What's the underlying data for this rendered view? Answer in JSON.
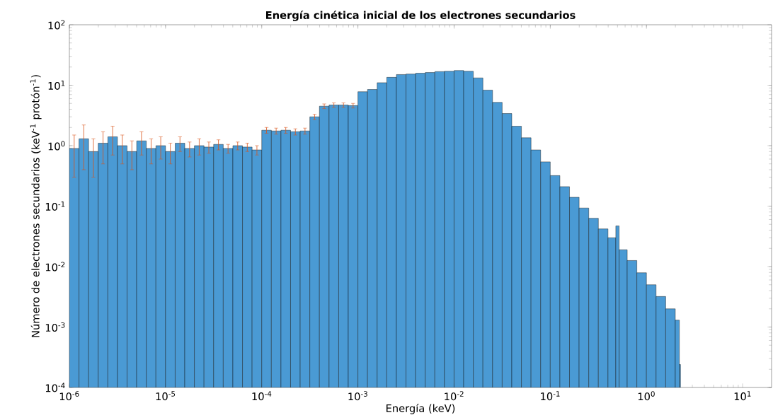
{
  "chart_data": {
    "type": "histogram",
    "title": "**Energía cinética inicial de los electrones secundarios**",
    "xlabel": "Energía (keV)",
    "ylabel": "Número de electrones secundarios (keV$^{-1}$ protón$^{-1}$)",
    "color": "#4a9ad4",
    "log": "xy",
    "grid": false,
    "bins": [
      1e-06,
      1.259e-06,
      1.585e-06,
      1.995e-06,
      2.512e-06,
      3.162e-06,
      3.981e-06,
      5.012e-06,
      6.31e-06,
      7.943e-06,
      1e-05,
      1.259e-05,
      1.585e-05,
      1.995e-05,
      2.512e-05,
      3.162e-05,
      3.981e-05,
      5.012e-05,
      6.31e-05,
      7.943e-05,
      0.0001,
      0.0001259,
      0.0001585,
      0.0001995,
      0.0002512,
      0.0003162,
      0.0003981,
      0.0005012,
      0.000631,
      0.0007943,
      0.001,
      0.001259,
      0.001585,
      0.001995,
      0.002512,
      0.003162,
      0.003981,
      0.005012,
      0.00631,
      0.007943,
      0.01,
      0.01259,
      0.01585,
      0.01995,
      0.02512,
      0.03162,
      0.03981,
      0.05012,
      0.0631,
      0.07943,
      0.1,
      0.1259,
      0.1585,
      0.1995,
      0.2512,
      0.3162,
      0.3981,
      0.48,
      0.52,
      0.631,
      0.7943,
      1,
      1.259,
      1.585,
      1.995,
      2.2,
      2.26
    ],
    "values": [
      0.9,
      1.3,
      0.8,
      1.1,
      1.4,
      1.0,
      0.8,
      1.2,
      0.9,
      1.0,
      0.8,
      1.1,
      0.9,
      1.0,
      0.95,
      1.05,
      0.9,
      1.0,
      0.95,
      0.85,
      1.8,
      1.75,
      1.8,
      1.7,
      1.75,
      3.0,
      4.5,
      4.7,
      4.7,
      4.6,
      7.8,
      8.5,
      11,
      13.5,
      15,
      15.3,
      15.8,
      16.2,
      16.8,
      17,
      17.5,
      17,
      13.2,
      8.3,
      5.2,
      3.4,
      2.1,
      1.35,
      0.85,
      0.54,
      0.32,
      0.21,
      0.14,
      0.093,
      0.063,
      0.042,
      0.03,
      0.047,
      0.019,
      0.0126,
      0.0079,
      0.005,
      0.0032,
      0.002,
      0.0013,
      0.00024
    ],
    "errors": [
      0.6,
      0.9,
      0.5,
      0.6,
      0.7,
      0.5,
      0.4,
      0.5,
      0.4,
      0.4,
      0.3,
      0.3,
      0.25,
      0.3,
      0.2,
      0.2,
      0.15,
      0.15,
      0.15,
      0.15,
      0.2,
      0.2,
      0.2,
      0.2,
      0.2,
      0.3,
      0.4,
      0.4,
      0.4,
      0.4,
      null,
      null,
      null,
      null,
      null,
      null,
      null,
      null,
      null,
      null,
      null,
      null,
      null,
      null,
      null,
      null,
      null,
      null,
      null,
      null,
      null,
      null,
      null,
      null,
      null,
      null,
      null,
      null,
      null,
      null,
      null,
      null,
      null,
      null,
      null,
      null
    ],
    "xlim": [
      1e-06,
      20
    ],
    "ylim": [
      0.0001,
      100
    ],
    "xticks": [
      {
        "value": 1e-06,
        "label": "10$^{-6}$"
      },
      {
        "value": 1e-05,
        "label": "10$^{-5}$"
      },
      {
        "value": 0.0001,
        "label": "10$^{-4}$"
      },
      {
        "value": 0.001,
        "label": "10$^{-3}$"
      },
      {
        "value": 0.01,
        "label": "10$^{-2}$"
      },
      {
        "value": 0.1,
        "label": "10$^{-1}$"
      },
      {
        "value": 1,
        "label": "10$^{0}$"
      },
      {
        "value": 10,
        "label": "10$^{1}$"
      }
    ],
    "yticks": [
      {
        "value": 0.0001,
        "label": "10$^{-4}$"
      },
      {
        "value": 0.001,
        "label": "10$^{-3}$"
      },
      {
        "value": 0.01,
        "label": "10$^{-2}$"
      },
      {
        "value": 0.1,
        "label": "10$^{-1}$"
      },
      {
        "value": 1,
        "label": "10$^{0}$"
      },
      {
        "value": 10,
        "label": "10$^{1}$"
      },
      {
        "value": 100,
        "label": "10$^{2}$"
      }
    ]
  }
}
